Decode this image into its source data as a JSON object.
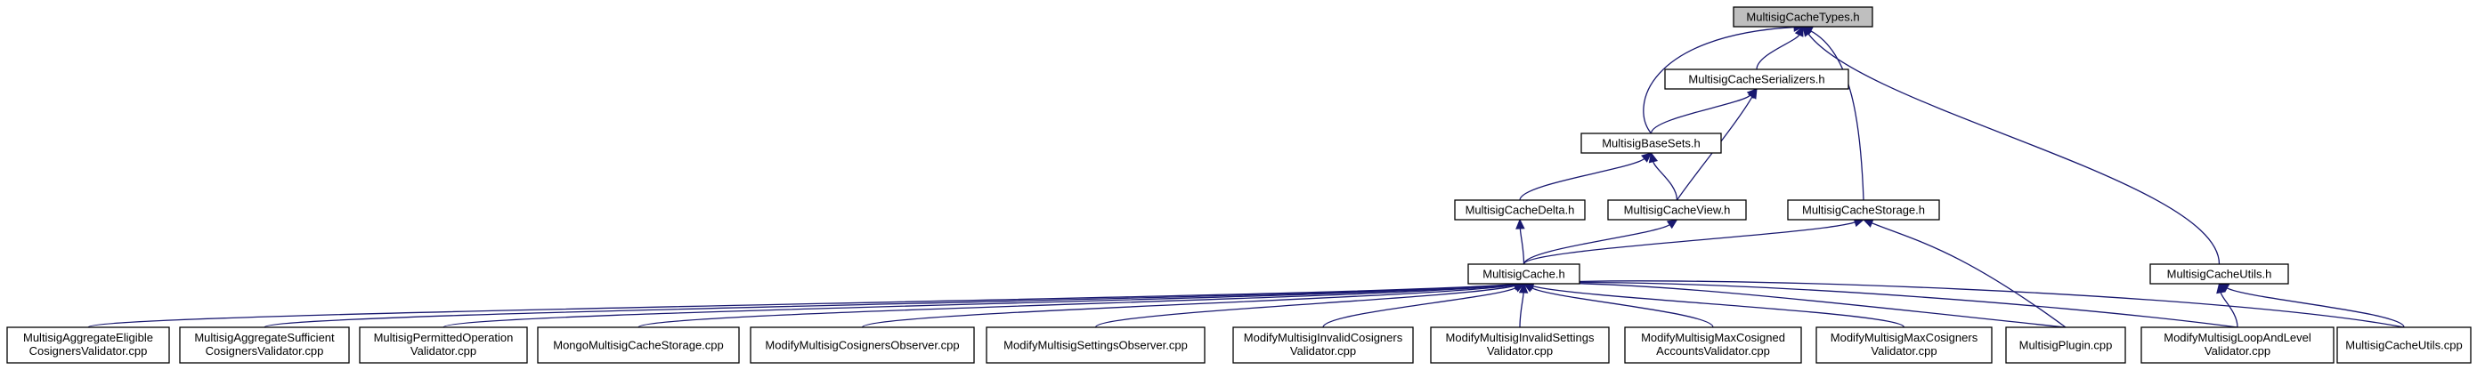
{
  "diagram": {
    "nodes": [
      {
        "id": "types",
        "lines": [
          "MultisigCacheTypes.h"
        ]
      },
      {
        "id": "serializers",
        "lines": [
          "MultisigCacheSerializers.h"
        ]
      },
      {
        "id": "basesets",
        "lines": [
          "MultisigBaseSets.h"
        ]
      },
      {
        "id": "delta",
        "lines": [
          "MultisigCacheDelta.h"
        ]
      },
      {
        "id": "view",
        "lines": [
          "MultisigCacheView.h"
        ]
      },
      {
        "id": "storage",
        "lines": [
          "MultisigCacheStorage.h"
        ]
      },
      {
        "id": "utilsh",
        "lines": [
          "MultisigCacheUtils.h"
        ]
      },
      {
        "id": "cache",
        "lines": [
          "MultisigCache.h"
        ]
      },
      {
        "id": "aggelig",
        "lines": [
          "MultisigAggregateEligible",
          "CosignersValidator.cpp"
        ]
      },
      {
        "id": "aggsuff",
        "lines": [
          "MultisigAggregateSufficient",
          "CosignersValidator.cpp"
        ]
      },
      {
        "id": "permop",
        "lines": [
          "MultisigPermittedOperation",
          "Validator.cpp"
        ]
      },
      {
        "id": "mongo",
        "lines": [
          "MongoMultisigCacheStorage.cpp"
        ]
      },
      {
        "id": "modcosobs",
        "lines": [
          "ModifyMultisigCosignersObserver.cpp"
        ]
      },
      {
        "id": "modsetobs",
        "lines": [
          "ModifyMultisigSettingsObserver.cpp"
        ]
      },
      {
        "id": "invcos",
        "lines": [
          "ModifyMultisigInvalidCosigners",
          "Validator.cpp"
        ]
      },
      {
        "id": "invset",
        "lines": [
          "ModifyMultisigInvalidSettings",
          "Validator.cpp"
        ]
      },
      {
        "id": "maxcosacc",
        "lines": [
          "ModifyMultisigMaxCosigned",
          "AccountsValidator.cpp"
        ]
      },
      {
        "id": "maxcos",
        "lines": [
          "ModifyMultisigMaxCosigners",
          "Validator.cpp"
        ]
      },
      {
        "id": "plugin",
        "lines": [
          "MultisigPlugin.cpp"
        ]
      },
      {
        "id": "loop",
        "lines": [
          "ModifyMultisigLoopAndLevel",
          "Validator.cpp"
        ]
      },
      {
        "id": "utilscpp",
        "lines": [
          "MultisigCacheUtils.cpp"
        ]
      }
    ],
    "edges": [
      {
        "from": "serializers",
        "to": "types"
      },
      {
        "from": "basesets",
        "to": "types"
      },
      {
        "from": "storage",
        "to": "types"
      },
      {
        "from": "utilsh",
        "to": "types"
      },
      {
        "from": "basesets",
        "to": "serializers"
      },
      {
        "from": "view",
        "to": "serializers"
      },
      {
        "from": "delta",
        "to": "basesets"
      },
      {
        "from": "view",
        "to": "basesets"
      },
      {
        "from": "cache",
        "to": "delta"
      },
      {
        "from": "cache",
        "to": "view"
      },
      {
        "from": "cache",
        "to": "storage"
      },
      {
        "from": "plugin",
        "to": "storage"
      },
      {
        "from": "loop",
        "to": "utilsh"
      },
      {
        "from": "utilscpp",
        "to": "utilsh"
      },
      {
        "from": "aggelig",
        "to": "cache"
      },
      {
        "from": "aggsuff",
        "to": "cache"
      },
      {
        "from": "permop",
        "to": "cache"
      },
      {
        "from": "mongo",
        "to": "cache"
      },
      {
        "from": "modcosobs",
        "to": "cache"
      },
      {
        "from": "modsetobs",
        "to": "cache"
      },
      {
        "from": "invcos",
        "to": "cache"
      },
      {
        "from": "invset",
        "to": "cache"
      },
      {
        "from": "maxcosacc",
        "to": "cache"
      },
      {
        "from": "maxcos",
        "to": "cache"
      },
      {
        "from": "plugin",
        "to": "cache"
      },
      {
        "from": "loop",
        "to": "cache"
      },
      {
        "from": "utilscpp",
        "to": "cache"
      }
    ],
    "colors": {
      "edge": "#191970",
      "root_fill": "#bfbfbf",
      "node_fill": "#ffffff",
      "border": "#000000"
    }
  }
}
